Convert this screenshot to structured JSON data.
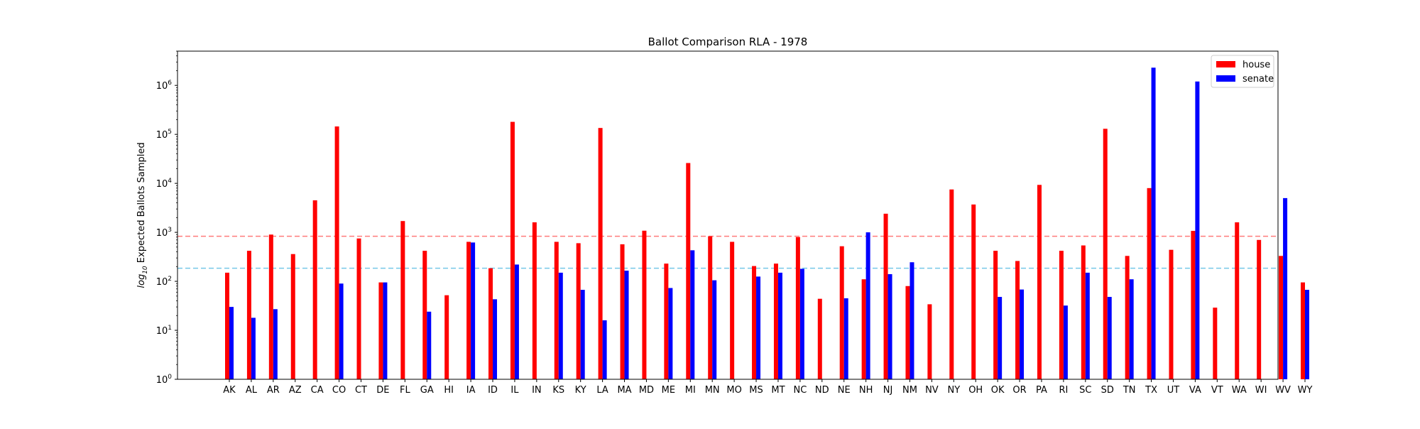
{
  "chart_data": {
    "type": "bar",
    "title": "Ballot Comparison RLA - 1978",
    "ylabel_prefix": "log",
    "ylabel_sub": "10",
    "ylabel_rest": " Expected Ballots Sampled",
    "y_scale": "log",
    "ylim": [
      1,
      5000000
    ],
    "y_ticks": [
      {
        "value": 1,
        "base": "10",
        "exp": "0"
      },
      {
        "value": 10,
        "base": "10",
        "exp": "1"
      },
      {
        "value": 100,
        "base": "10",
        "exp": "2"
      },
      {
        "value": 1000,
        "base": "10",
        "exp": "3"
      },
      {
        "value": 10000,
        "base": "10",
        "exp": "4"
      },
      {
        "value": 100000,
        "base": "10",
        "exp": "5"
      },
      {
        "value": 1000000,
        "base": "10",
        "exp": "6"
      }
    ],
    "categories": [
      "AK",
      "AL",
      "AR",
      "AZ",
      "CA",
      "CO",
      "CT",
      "DE",
      "FL",
      "GA",
      "HI",
      "IA",
      "ID",
      "IL",
      "IN",
      "KS",
      "KY",
      "LA",
      "MA",
      "MD",
      "ME",
      "MI",
      "MN",
      "MO",
      "MS",
      "MT",
      "NC",
      "ND",
      "NE",
      "NH",
      "NJ",
      "NM",
      "NV",
      "NY",
      "OH",
      "OK",
      "OR",
      "PA",
      "RI",
      "SC",
      "SD",
      "TN",
      "TX",
      "UT",
      "VA",
      "VT",
      "WA",
      "WI",
      "WV",
      "WY"
    ],
    "series": [
      {
        "name": "house",
        "color": "#ff0000",
        "values": [
          150,
          420,
          900,
          360,
          4500,
          145000,
          750,
          95,
          1700,
          420,
          52,
          640,
          185,
          180000,
          1600,
          640,
          600,
          135000,
          570,
          1080,
          230,
          26000,
          830,
          640,
          205,
          230,
          800,
          44,
          520,
          110,
          2400,
          80,
          34,
          7500,
          3700,
          420,
          260,
          9300,
          420,
          540,
          130000,
          330,
          8000,
          440,
          1070,
          29,
          1600,
          700,
          330,
          95
        ]
      },
      {
        "name": "senate",
        "color": "#0000ff",
        "values": [
          30,
          18,
          27,
          null,
          null,
          90,
          null,
          95,
          null,
          24,
          null,
          620,
          43,
          220,
          null,
          150,
          67,
          16,
          165,
          null,
          73,
          430,
          105,
          null,
          125,
          150,
          180,
          null,
          45,
          1000,
          140,
          245,
          null,
          null,
          null,
          48,
          68,
          null,
          32,
          150,
          48,
          110,
          2300000,
          null,
          1200000,
          null,
          null,
          null,
          5000,
          67
        ]
      }
    ],
    "reference_lines": [
      {
        "series": "house",
        "value": 830,
        "color": "#ff7b7b",
        "style": "dashed"
      },
      {
        "series": "senate",
        "value": 185,
        "color": "#76c8e8",
        "style": "dashed"
      }
    ],
    "legend_position": "top-right",
    "grid": false
  }
}
